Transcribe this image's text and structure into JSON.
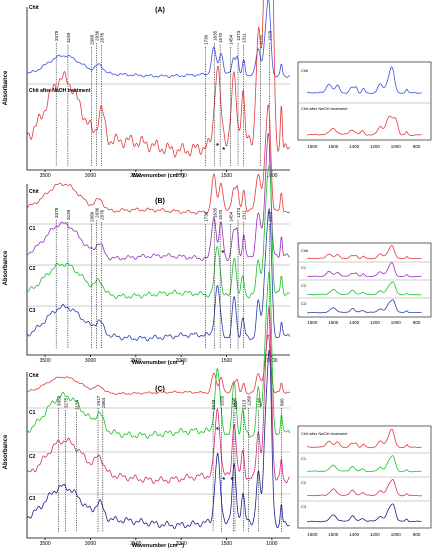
{
  "figure": {
    "ylabel": "Absorbance",
    "xlabel": "Wavenumber (cm⁻¹)",
    "star": "*"
  },
  "chart_data": [
    {
      "type": "line",
      "panel": "(A)",
      "xlabel": "Wavenumber (cm⁻¹)",
      "ylabel": "Absorbance",
      "xlim": [
        3700,
        800
      ],
      "xticks": [
        3500,
        3000,
        2500,
        2000,
        1500,
        1000
      ],
      "series": [
        {
          "name": "Chit",
          "color": "#3b4fe0"
        },
        {
          "name": "Chit after NaOH treatment",
          "color": "#e23a3a"
        }
      ],
      "peaks": [
        "3378",
        "3249",
        "2989",
        "2936",
        "2876",
        "1730",
        "1635",
        "1570",
        "1454",
        "1373",
        "1311",
        "1125",
        "1028"
      ],
      "inset": {
        "xticks": [
          1800,
          1600,
          1400,
          1200,
          1000,
          800
        ],
        "legend": [
          "Chit",
          "Chit after NaOH treatment"
        ]
      }
    },
    {
      "type": "line",
      "panel": "(B)",
      "xlabel": "Wavenumber (cm⁻¹)",
      "ylabel": "Absorbance",
      "xlim": [
        3700,
        800
      ],
      "xticks": [
        3500,
        3000,
        2500,
        2000,
        1500,
        1000
      ],
      "series": [
        {
          "name": "Chit",
          "color": "#e23a3a"
        },
        {
          "name": "C1",
          "color": "#9a2fbf"
        },
        {
          "name": "C2",
          "color": "#16c427"
        },
        {
          "name": "C3",
          "color": "#2a3ea8"
        }
      ],
      "peaks": [
        "3378",
        "3249",
        "2989",
        "2936",
        "2876",
        "1730",
        "1635",
        "1570",
        "1454",
        "1373",
        "1311",
        "1028"
      ],
      "inset": {
        "xticks": [
          1800,
          1600,
          1400,
          1200,
          1000,
          800
        ],
        "legend": [
          "Chit",
          "C1",
          "C2",
          "C3"
        ]
      }
    },
    {
      "type": "line",
      "panel": "(C)",
      "xlabel": "Wavenumber (cm⁻¹)",
      "ylabel": "Absorbance",
      "xlim": [
        3700,
        800
      ],
      "xticks": [
        3500,
        3000,
        2500,
        2000,
        1500,
        1000
      ],
      "series": [
        {
          "name": "Chit",
          "color": "#e23a3a"
        },
        {
          "name": "C1",
          "color": "#16c427"
        },
        {
          "name": "C2",
          "color": "#d42a7a"
        },
        {
          "name": "C3",
          "color": "#1a1f8c"
        }
      ],
      "peaks": [
        "3353",
        "3275",
        "3154",
        "2917",
        "2864",
        "1648",
        "1555",
        "1425",
        "1313",
        "1260",
        "1148",
        "1407",
        "895"
      ],
      "inset": {
        "xticks": [
          1800,
          1600,
          1400,
          1200,
          1000,
          800
        ],
        "legend": [
          "Chit after NaOH treatment",
          "C1",
          "C2",
          "C3"
        ]
      }
    }
  ]
}
